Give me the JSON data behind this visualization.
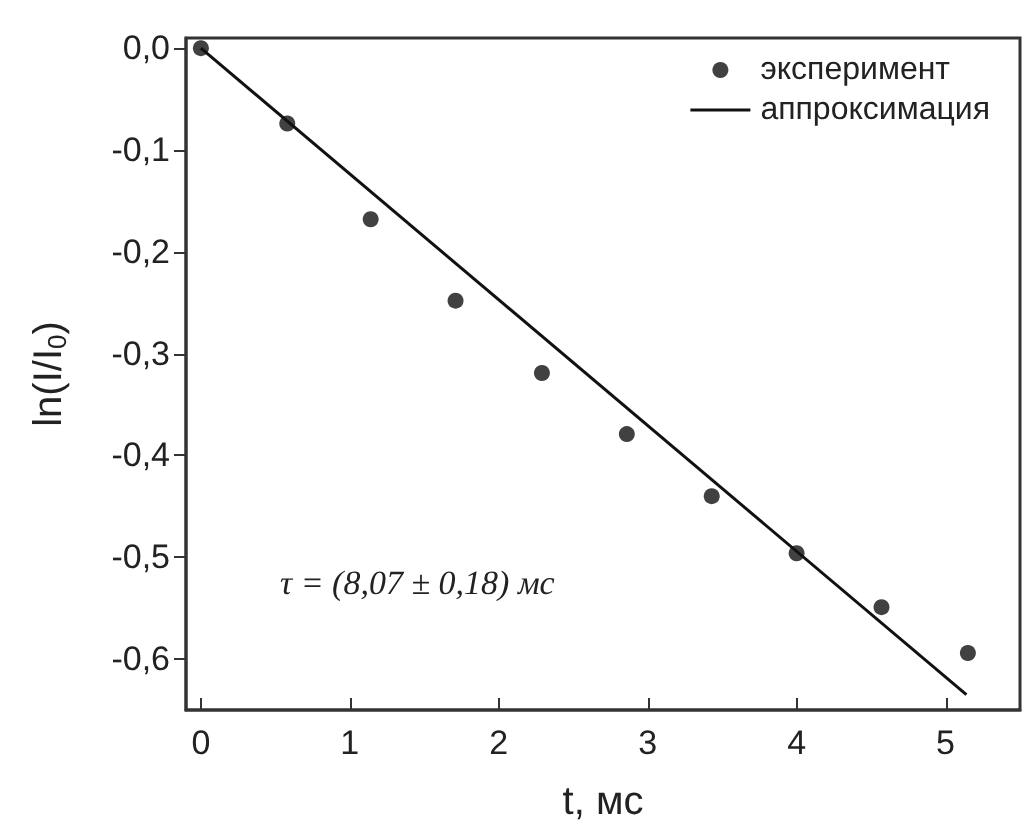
{
  "chart_data": {
    "type": "scatter",
    "xlabel": "t, мс",
    "ylabel": "ln(I/I$_{0}$)",
    "xlim": [
      -0.1,
      5.5
    ],
    "xticks": [
      0,
      1,
      2,
      3,
      4,
      5
    ],
    "ylim": [
      -0.65,
      0.01
    ],
    "yticks": [
      {
        "value": 0,
        "label": "0,0"
      },
      {
        "value": -0.1,
        "label": "-0,1"
      },
      {
        "value": -0.2,
        "label": "-0,2"
      },
      {
        "value": -0.3,
        "label": "-0,3"
      },
      {
        "value": -0.4,
        "label": "-0,4"
      },
      {
        "value": -0.5,
        "label": "-0,5"
      },
      {
        "value": -0.6,
        "label": "-0,6"
      }
    ],
    "series": [
      {
        "name": "эксперимент",
        "color": "#111111",
        "marker": "circle",
        "x": [
          0,
          0.58,
          1.14,
          1.71,
          2.29,
          2.86,
          3.43,
          4.0,
          4.57,
          5.15
        ],
        "values": [
          0,
          -0.074,
          -0.168,
          -0.248,
          -0.319,
          -0.379,
          -0.44,
          -0.496,
          -0.549,
          -0.594
        ]
      },
      {
        "name": "аппроксимация",
        "type": "line",
        "color": "#111111",
        "line_style": "solid",
        "marker": "none",
        "x": [
          0,
          5.14
        ],
        "values": [
          0,
          -0.635
        ]
      }
    ],
    "annotations": [
      "τ = (8,07 ± 0,18) мс"
    ],
    "legend": "top right",
    "grid": false
  }
}
